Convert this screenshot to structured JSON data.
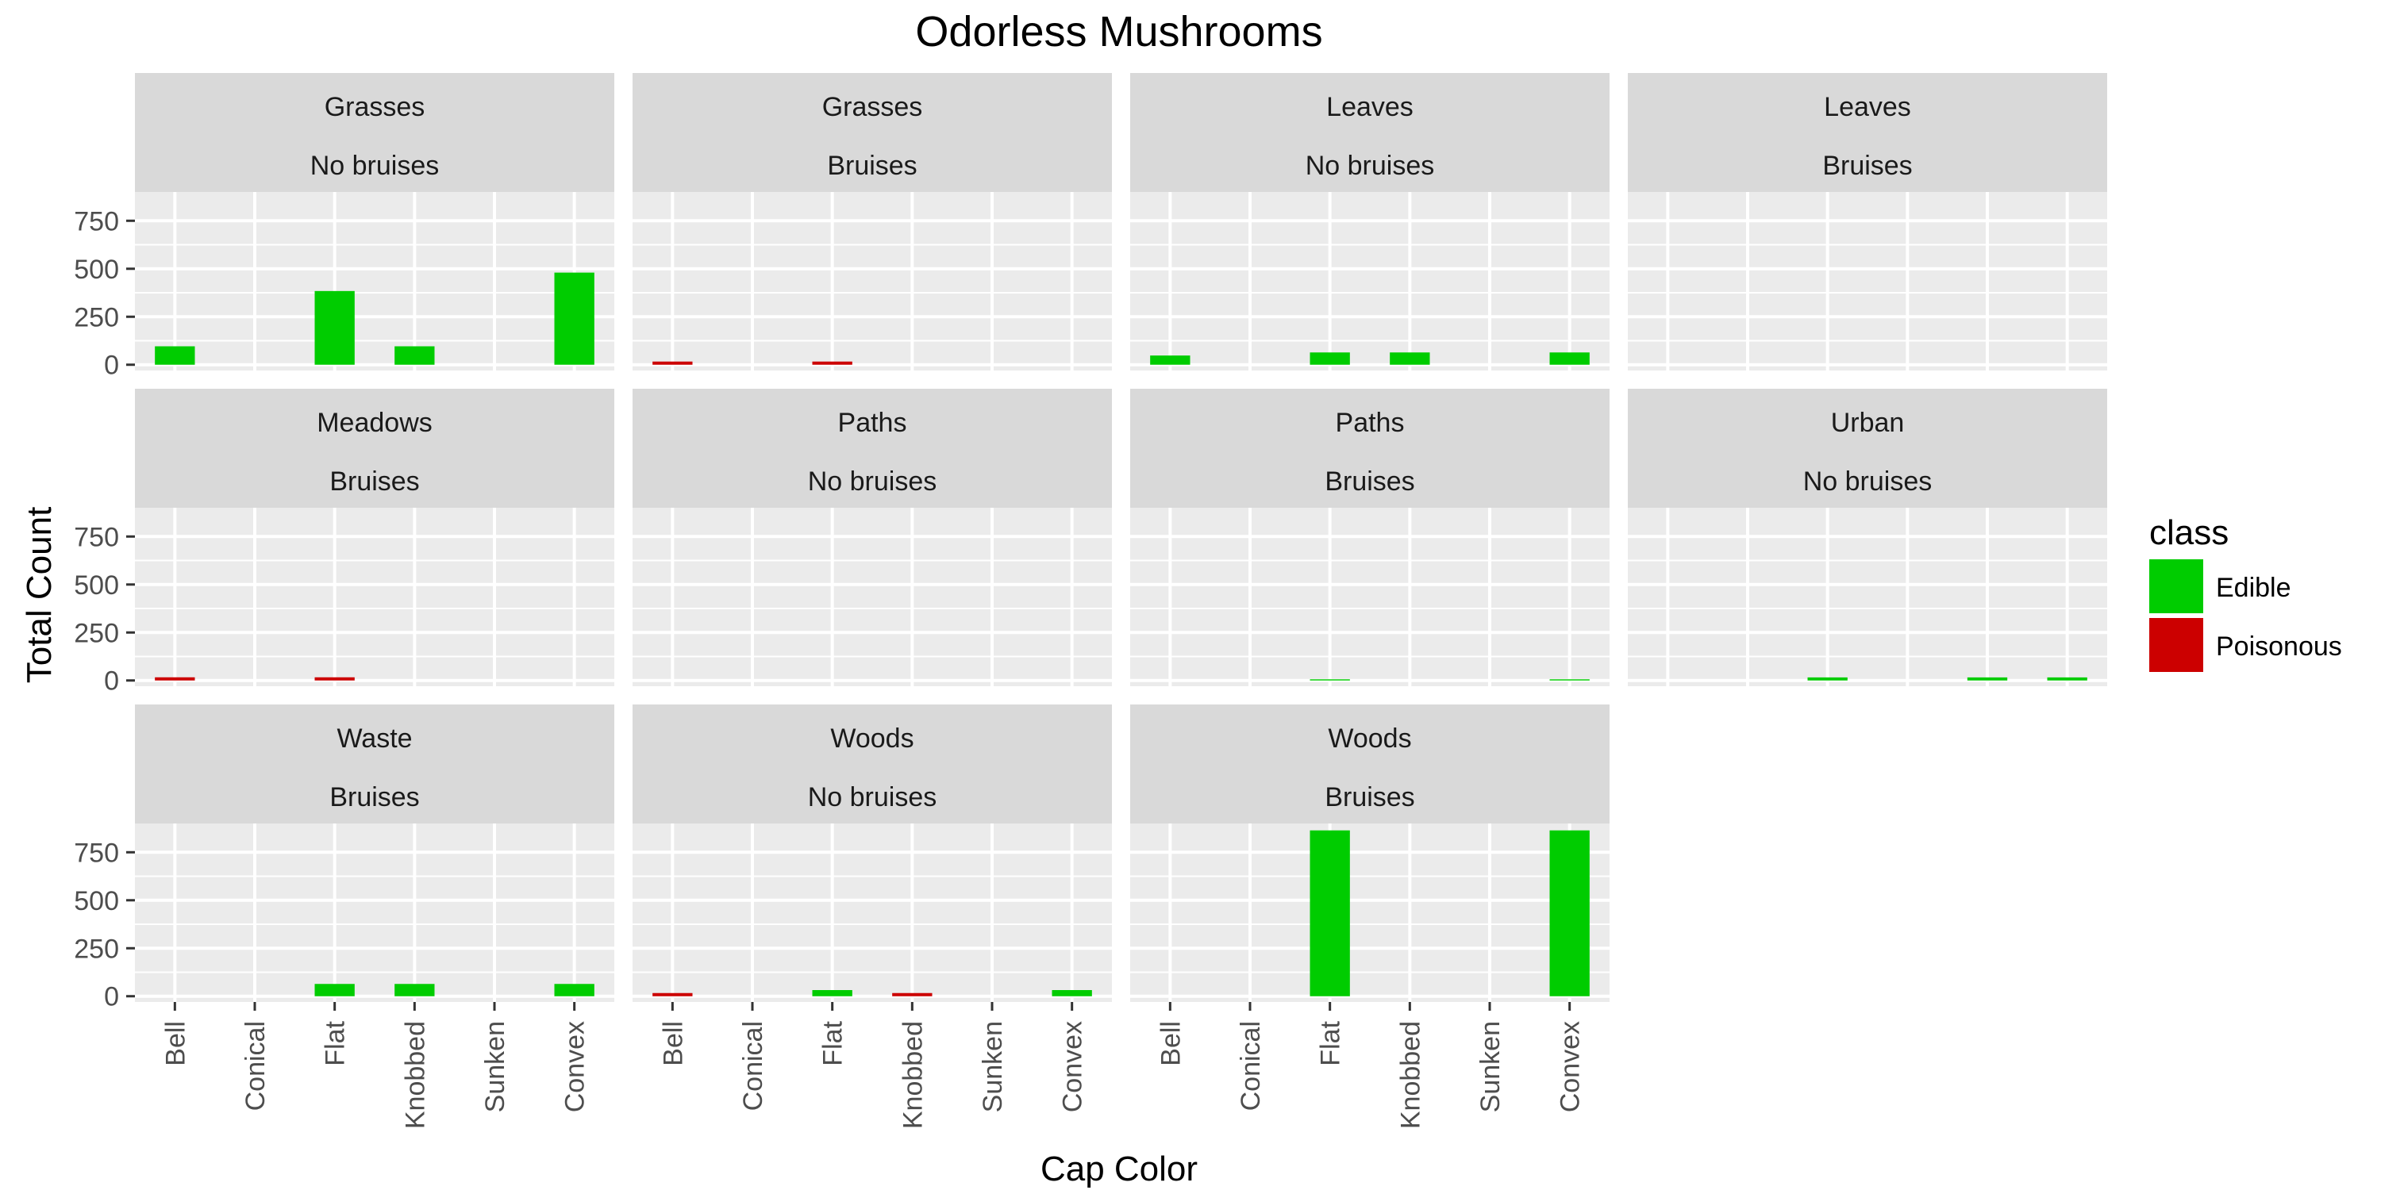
{
  "chart_data": {
    "type": "bar",
    "title": "Odorless Mushrooms",
    "xlabel": "Cap Color",
    "ylabel": "Total Count",
    "ylim": [
      -30,
      900
    ],
    "yticks": [
      0,
      250,
      500,
      750
    ],
    "ytick_labels": [
      "0",
      "250",
      "500",
      "750"
    ],
    "categories": [
      "Bell",
      "Conical",
      "Flat",
      "Knobbed",
      "Sunken",
      "Convex"
    ],
    "legend": {
      "title": "class",
      "position": "right",
      "entries": [
        {
          "name": "Edible",
          "color": "#00CC00"
        },
        {
          "name": "Poisonous",
          "color": "#CC0000"
        }
      ]
    },
    "grid": true,
    "panels": [
      {
        "row": 0,
        "col": 0,
        "strip": [
          "Grasses",
          "No bruises"
        ],
        "edible": [
          96,
          0,
          384,
          96,
          0,
          480
        ],
        "poisonous": [
          0,
          0,
          0,
          0,
          0,
          0
        ]
      },
      {
        "row": 0,
        "col": 1,
        "strip": [
          "Grasses",
          "Bruises"
        ],
        "edible": [
          0,
          0,
          0,
          0,
          0,
          0
        ],
        "poisonous": [
          8,
          0,
          8,
          0,
          0,
          0
        ]
      },
      {
        "row": 0,
        "col": 2,
        "strip": [
          "Leaves",
          "No bruises"
        ],
        "edible": [
          48,
          0,
          64,
          64,
          0,
          64
        ],
        "poisonous": [
          0,
          0,
          0,
          0,
          0,
          0
        ]
      },
      {
        "row": 0,
        "col": 3,
        "strip": [
          "Leaves",
          "Bruises"
        ],
        "edible": [
          0,
          0,
          0,
          0,
          0,
          0
        ],
        "poisonous": [
          0,
          0,
          0,
          0,
          0,
          0
        ]
      },
      {
        "row": 1,
        "col": 0,
        "strip": [
          "Meadows",
          "Bruises"
        ],
        "edible": [
          0,
          0,
          0,
          0,
          0,
          0
        ],
        "poisonous": [
          8,
          0,
          8,
          0,
          0,
          0
        ]
      },
      {
        "row": 1,
        "col": 1,
        "strip": [
          "Paths",
          "No bruises"
        ],
        "edible": [
          0,
          0,
          0,
          0,
          0,
          0
        ],
        "poisonous": [
          0,
          0,
          0,
          0,
          0,
          0
        ]
      },
      {
        "row": 1,
        "col": 2,
        "strip": [
          "Paths",
          "Bruises"
        ],
        "edible": [
          0,
          0,
          6,
          0,
          0,
          6
        ],
        "poisonous": [
          0,
          0,
          0,
          0,
          0,
          0
        ]
      },
      {
        "row": 1,
        "col": 3,
        "strip": [
          "Urban",
          "No bruises"
        ],
        "edible": [
          0,
          0,
          16,
          0,
          16,
          16
        ],
        "poisonous": [
          0,
          0,
          0,
          0,
          0,
          0
        ]
      },
      {
        "row": 2,
        "col": 0,
        "strip": [
          "Waste",
          "Bruises"
        ],
        "edible": [
          0,
          0,
          64,
          64,
          0,
          64
        ],
        "poisonous": [
          0,
          0,
          0,
          0,
          0,
          0
        ]
      },
      {
        "row": 2,
        "col": 1,
        "strip": [
          "Woods",
          "No bruises"
        ],
        "edible": [
          0,
          0,
          32,
          0,
          0,
          32
        ],
        "poisonous": [
          8,
          0,
          0,
          8,
          0,
          0
        ]
      },
      {
        "row": 2,
        "col": 2,
        "strip": [
          "Woods",
          "Bruises"
        ],
        "edible": [
          0,
          0,
          864,
          0,
          0,
          864
        ],
        "poisonous": [
          0,
          0,
          0,
          0,
          0,
          0
        ]
      }
    ]
  }
}
